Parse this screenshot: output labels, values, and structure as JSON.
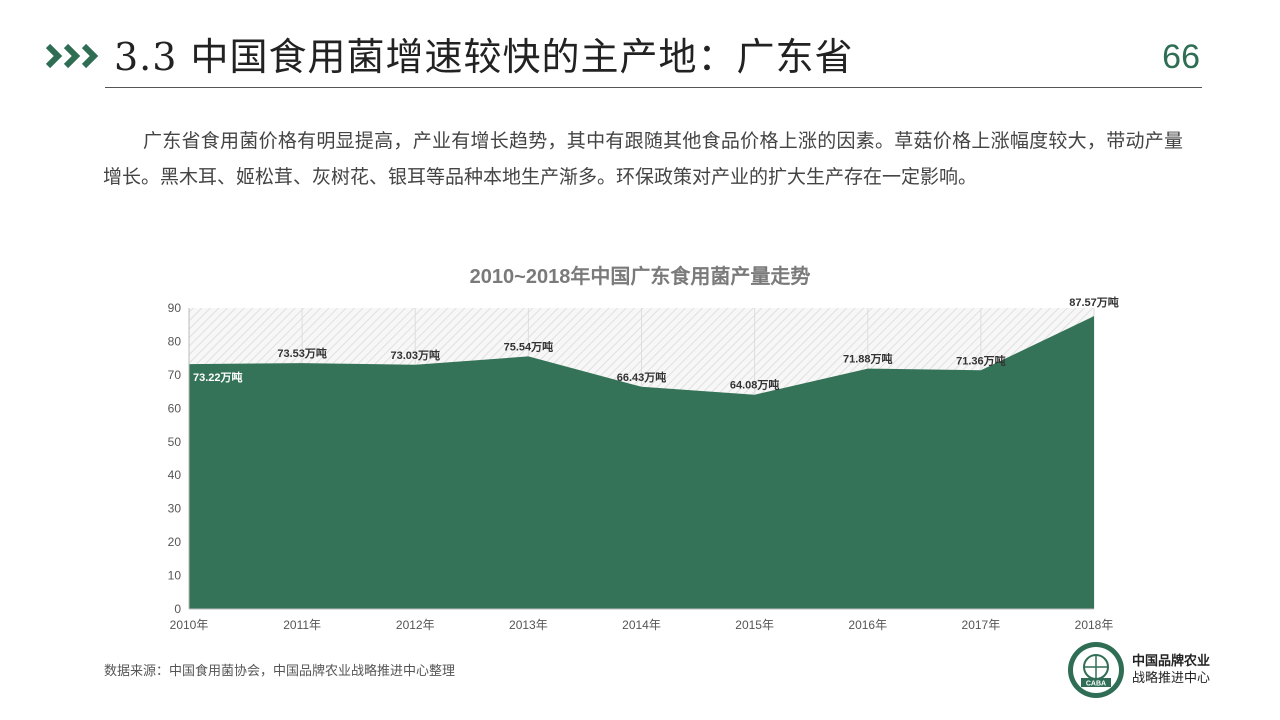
{
  "header": {
    "title": "3.3 中国食用菌增速较快的主产地：广东省",
    "page_number": "66",
    "accent_color": "#2f6e55"
  },
  "body": {
    "paragraph": "广东省食用菌价格有明显提高，产业有增长趋势，其中有跟随其他食品价格上涨的因素。草菇价格上涨幅度较大，带动产量增长。黑木耳、姬松茸、灰树花、银耳等品种本地生产渐多。环保政策对产业的扩大生产存在一定影响。"
  },
  "chart_data": {
    "type": "area",
    "title": "2010~2018年中国广东食用菌产量走势",
    "categories": [
      "2010年",
      "2011年",
      "2012年",
      "2013年",
      "2014年",
      "2015年",
      "2016年",
      "2017年",
      "2018年"
    ],
    "values": [
      73.22,
      73.53,
      73.03,
      75.54,
      66.43,
      64.08,
      71.88,
      71.36,
      87.57
    ],
    "data_labels": [
      "73.22万吨",
      "73.53万吨",
      "73.03万吨",
      "75.54万吨",
      "66.43万吨",
      "64.08万吨",
      "71.88万吨",
      "71.36万吨",
      "87.57万吨"
    ],
    "y_ticks": [
      "0",
      "10",
      "20",
      "30",
      "40",
      "50",
      "60",
      "70",
      "80",
      "90"
    ],
    "ylim": [
      0,
      90
    ],
    "fill_color": "#357358",
    "grid": true,
    "legend": "none"
  },
  "footer": {
    "source": "数据来源：中国食用菌协会，中国品牌农业战略推进中心整理",
    "logo_line1": "中国品牌农业",
    "logo_line2": "战略推进中心",
    "logo_abbrev": "CABA"
  }
}
